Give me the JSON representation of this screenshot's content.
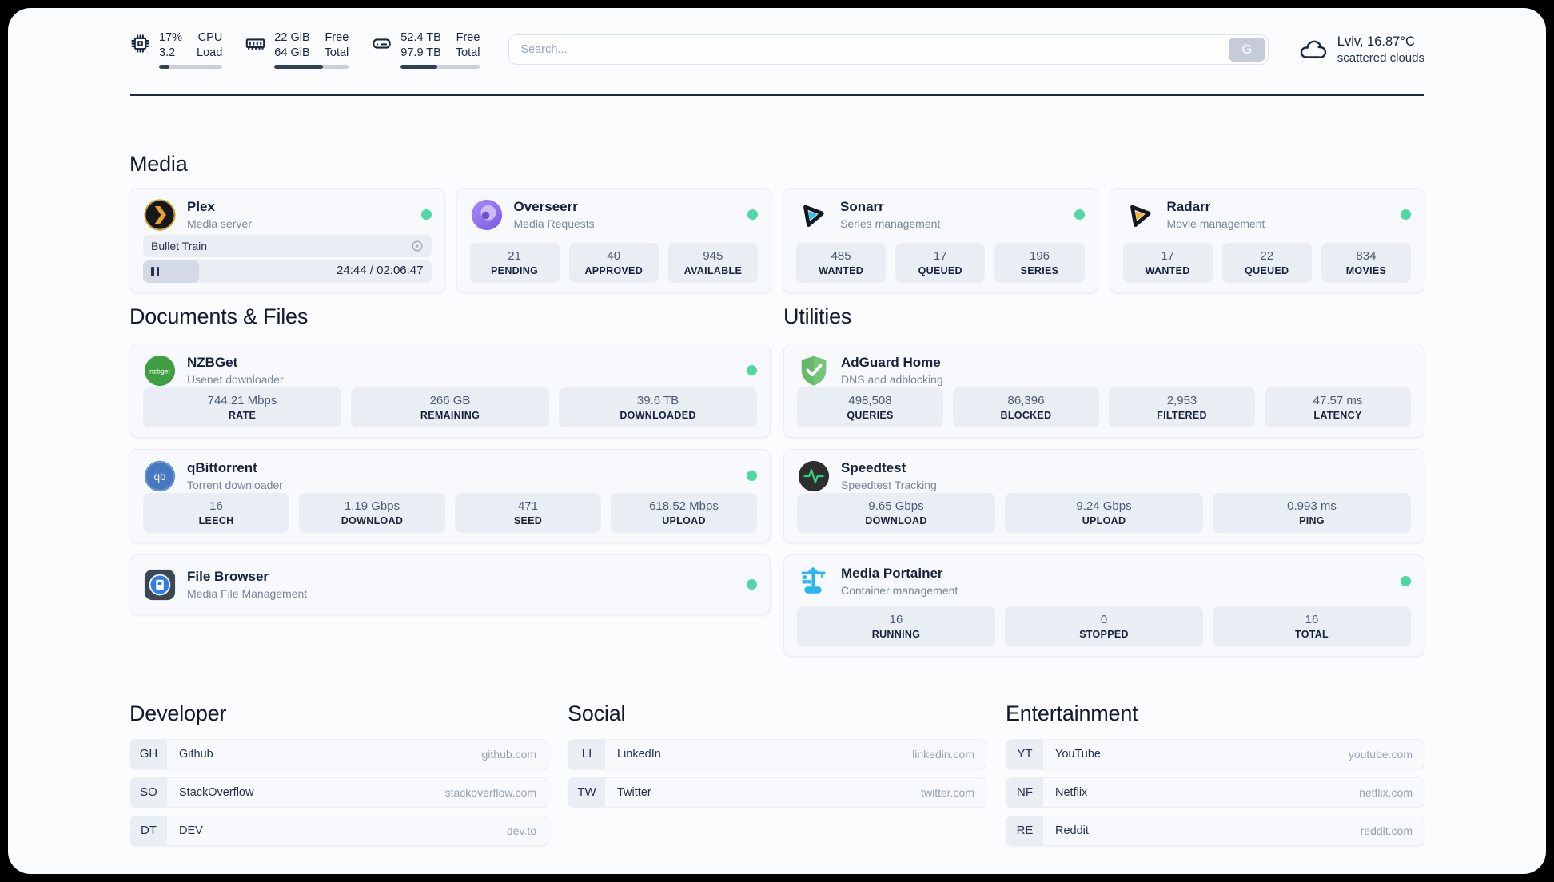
{
  "topbar": {
    "resources": [
      {
        "values": [
          "17%",
          "3.2"
        ],
        "labels": [
          "CPU",
          "Load"
        ],
        "progress_pct": 17
      },
      {
        "values": [
          "22 GiB",
          "64 GiB"
        ],
        "labels": [
          "Free",
          "Total"
        ],
        "progress_pct": 65
      },
      {
        "values": [
          "52.4 TB",
          "97.9 TB"
        ],
        "labels": [
          "Free",
          "Total"
        ],
        "progress_pct": 46
      }
    ],
    "search": {
      "placeholder": "Search...",
      "value": "",
      "button_label": "G"
    },
    "weather": {
      "headline": "Lviv, 16.87°C",
      "condition": "scattered clouds"
    }
  },
  "media": {
    "title": "Media",
    "plex": {
      "name": "Plex",
      "subtitle": "Media server",
      "now_playing": {
        "title": "Bullet Train",
        "time_display": "24:44 / 02:06:47",
        "progress_pct": 19.5
      }
    },
    "overseerr": {
      "name": "Overseerr",
      "subtitle": "Media Requests",
      "stats": [
        {
          "value": "21",
          "label": "PENDING"
        },
        {
          "value": "40",
          "label": "APPROVED"
        },
        {
          "value": "945",
          "label": "AVAILABLE"
        }
      ]
    },
    "sonarr": {
      "name": "Sonarr",
      "subtitle": "Series management",
      "stats": [
        {
          "value": "485",
          "label": "WANTED"
        },
        {
          "value": "17",
          "label": "QUEUED"
        },
        {
          "value": "196",
          "label": "SERIES"
        }
      ]
    },
    "radarr": {
      "name": "Radarr",
      "subtitle": "Movie management",
      "stats": [
        {
          "value": "17",
          "label": "WANTED"
        },
        {
          "value": "22",
          "label": "QUEUED"
        },
        {
          "value": "834",
          "label": "MOVIES"
        }
      ]
    }
  },
  "documents": {
    "title": "Documents & Files",
    "nzbget": {
      "name": "NZBGet",
      "subtitle": "Usenet downloader",
      "icon_text": "nzbget",
      "stats": [
        {
          "value": "744.21 Mbps",
          "label": "RATE"
        },
        {
          "value": "266 GB",
          "label": "REMAINING"
        },
        {
          "value": "39.6 TB",
          "label": "DOWNLOADED"
        }
      ]
    },
    "qbittorrent": {
      "name": "qBittorrent",
      "subtitle": "Torrent downloader",
      "icon_text": "qb",
      "stats": [
        {
          "value": "16",
          "label": "LEECH"
        },
        {
          "value": "1.19 Gbps",
          "label": "DOWNLOAD"
        },
        {
          "value": "471",
          "label": "SEED"
        },
        {
          "value": "618.52 Mbps",
          "label": "UPLOAD"
        }
      ]
    },
    "filebrowser": {
      "name": "File Browser",
      "subtitle": "Media File Management"
    }
  },
  "utilities": {
    "title": "Utilities",
    "adguard": {
      "name": "AdGuard Home",
      "subtitle": "DNS and adblocking",
      "stats": [
        {
          "value": "498,508",
          "label": "QUERIES"
        },
        {
          "value": "86,396",
          "label": "BLOCKED"
        },
        {
          "value": "2,953",
          "label": "FILTERED"
        },
        {
          "value": "47.57 ms",
          "label": "LATENCY"
        }
      ]
    },
    "speedtest": {
      "name": "Speedtest",
      "subtitle": "Speedtest Tracking",
      "stats": [
        {
          "value": "9.65 Gbps",
          "label": "DOWNLOAD"
        },
        {
          "value": "9.24 Gbps",
          "label": "UPLOAD"
        },
        {
          "value": "0.993 ms",
          "label": "PING"
        }
      ]
    },
    "portainer": {
      "name": "Media Portainer",
      "subtitle": "Container management",
      "stats": [
        {
          "value": "16",
          "label": "RUNNING"
        },
        {
          "value": "0",
          "label": "STOPPED"
        },
        {
          "value": "16",
          "label": "TOTAL"
        }
      ]
    }
  },
  "bookmarks": {
    "developer": {
      "title": "Developer",
      "items": [
        {
          "abbr": "GH",
          "name": "Github",
          "url": "github.com"
        },
        {
          "abbr": "SO",
          "name": "StackOverflow",
          "url": "stackoverflow.com"
        },
        {
          "abbr": "DT",
          "name": "DEV",
          "url": "dev.to"
        }
      ]
    },
    "social": {
      "title": "Social",
      "items": [
        {
          "abbr": "LI",
          "name": "LinkedIn",
          "url": "linkedin.com"
        },
        {
          "abbr": "TW",
          "name": "Twitter",
          "url": "twitter.com"
        }
      ]
    },
    "entertainment": {
      "title": "Entertainment",
      "items": [
        {
          "abbr": "YT",
          "name": "YouTube",
          "url": "youtube.com"
        },
        {
          "abbr": "NF",
          "name": "Netflix",
          "url": "netflix.com"
        },
        {
          "abbr": "RE",
          "name": "Reddit",
          "url": "reddit.com"
        }
      ]
    }
  },
  "colors": {
    "status_online": "#4fd8a4",
    "progress_fill": "#333f54",
    "accent_divider": "#212b3c"
  }
}
